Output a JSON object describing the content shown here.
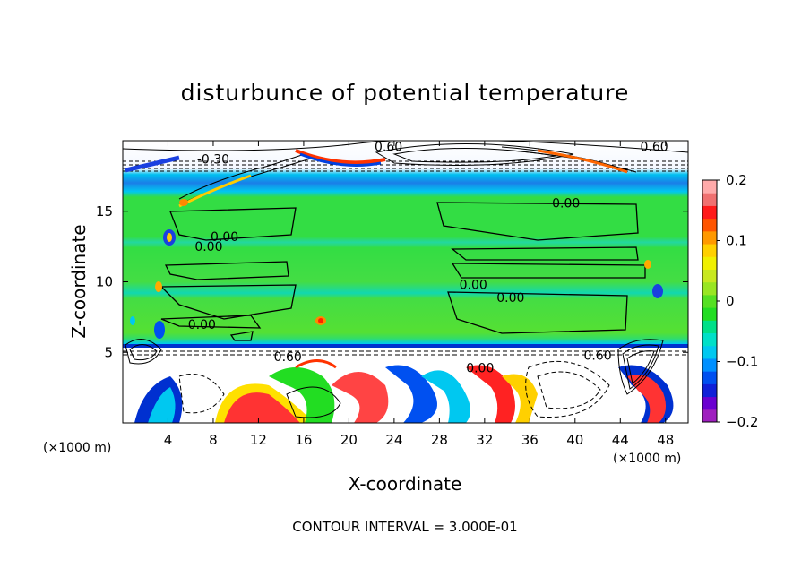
{
  "chart_data": {
    "type": "heatmap",
    "title": "disturbunce of potential temperature",
    "xlabel": "X-coordinate",
    "ylabel": "Z-coordinate",
    "x_unit": "(×1000 m)",
    "x_unit_right": "(×1000 m)",
    "x_ticks": [
      4,
      8,
      12,
      16,
      20,
      24,
      28,
      32,
      36,
      40,
      44,
      48
    ],
    "y_ticks": [
      5,
      10,
      15
    ],
    "xlim": [
      0,
      50
    ],
    "ylim": [
      0,
      20
    ],
    "colorbar": {
      "ticks": [
        0.2,
        0.1,
        0,
        -0.1,
        -0.2
      ],
      "tick_labels": [
        "0.2",
        "0.1",
        "0",
        "−0.1",
        "−0.2"
      ],
      "range": [
        -0.2,
        0.2
      ],
      "colors": [
        "#9f1fbf",
        "#6a00d0",
        "#1020d8",
        "#0050f0",
        "#0090ff",
        "#00c8f0",
        "#00e0c8",
        "#00e088",
        "#22dd22",
        "#55e022",
        "#99e622",
        "#c8e820",
        "#f0f000",
        "#ffd000",
        "#ff9900",
        "#ff5500",
        "#ff1a1a",
        "#f07070",
        "#ffaaaa"
      ]
    },
    "contour_labels": [
      {
        "text": "0.00",
        "x": 39.2,
        "z": 15.6
      },
      {
        "text": "0.00",
        "x": 9.0,
        "z": 13.2
      },
      {
        "text": "0.00",
        "x": 7.6,
        "z": 12.5
      },
      {
        "text": "0.00",
        "x": 31.0,
        "z": 9.8
      },
      {
        "text": "0.00",
        "x": 34.3,
        "z": 8.9
      },
      {
        "text": "0.00",
        "x": 7.0,
        "z": 7.0
      },
      {
        "text": "0.00",
        "x": 31.6,
        "z": 3.9
      },
      {
        "text": "0.60",
        "x": 14.6,
        "z": 4.7
      },
      {
        "text": "0.60",
        "x": 42.0,
        "z": 4.8
      },
      {
        "text": "0.60",
        "x": 23.5,
        "z": 19.6
      },
      {
        "text": "0.60",
        "x": 47.0,
        "z": 19.6
      },
      {
        "text": "-0.30",
        "x": 8.0,
        "z": 18.7
      }
    ],
    "contour_interval_text": "CONTOUR INTERVAL = 3.000E-01"
  }
}
